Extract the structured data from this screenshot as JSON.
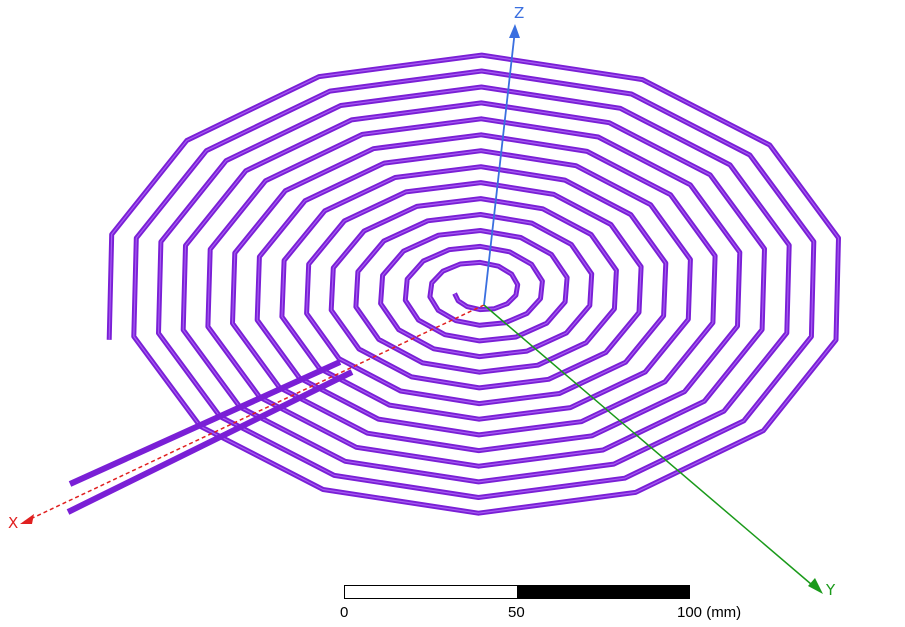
{
  "scene": {
    "coil_color": "#7a1fd6",
    "coil_highlight": "#a65cf2",
    "turns": 14,
    "sides": 14
  },
  "axes": {
    "x": {
      "label": "X",
      "color": "#e02020"
    },
    "y": {
      "label": "Y",
      "color": "#1a9a1a"
    },
    "z": {
      "label": "Z",
      "color": "#3a6fe0"
    }
  },
  "scale_bar": {
    "ticks": [
      "0",
      "50",
      "100 (mm)"
    ],
    "segment_colors": [
      "#ffffff",
      "#000000"
    ]
  }
}
